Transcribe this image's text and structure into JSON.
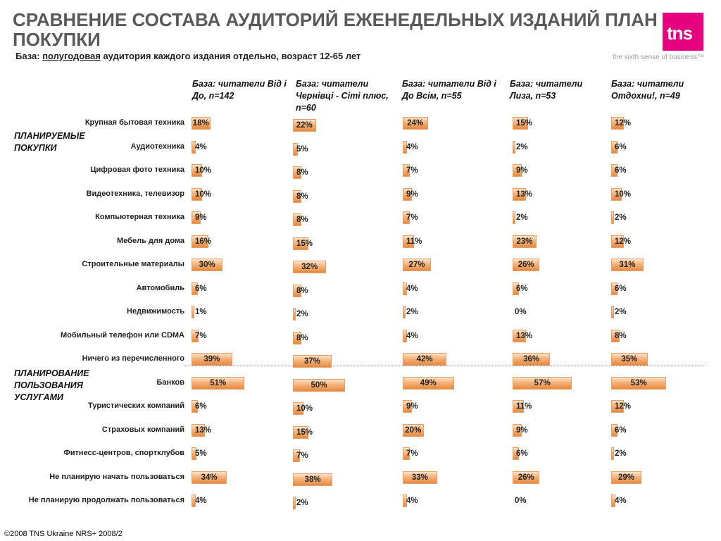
{
  "header": {
    "title_line1": "СРАВНЕНИЕ СОСТАВА АУДИТОРИЙ ЕЖЕНЕДЕЛЬНЫХ ИЗДАНИЙ ПЛАН",
    "title_line2": "ПОКУПКИ",
    "subtitle_prefix": "База: ",
    "subtitle_underlined": "полугодовая",
    "subtitle_suffix": " аудитория каждого издания отдельно, возраст 12-65 лет",
    "logo_text": "tns",
    "tagline": "the sixth sense of business™"
  },
  "footer": "©2008 TNS Ukraine  NRS+ 2008/2",
  "colors": {
    "bar": "#f5b27a",
    "brand": "#e6007e"
  },
  "chart_data": {
    "type": "bar",
    "orientation": "horizontal",
    "groups": [
      "ПЛАНИРУЕМЫЕ ПОКУПКИ",
      "ПЛАНИРОВАНИЕ ПОЛЬЗОВАНИЯ УСЛУГАМИ"
    ],
    "categories": [
      "Крупная бытовая техника",
      "Аудиотехника",
      "Цифровая фото техника",
      "Видеотехника, телевизор",
      "Компьютерная техника",
      "Мебель для дома",
      "Строительные материалы",
      "Автомобиль",
      "Недвижимость",
      "Мобильный телефон или CDMA",
      "Ничего из перечисленного",
      "Банков",
      "Туристических компаний",
      "Страховых компаний",
      "Фитнесс-центров, спортклубов",
      "Не планирую начать пользоваться",
      "Не планирую продолжать пользоваться"
    ],
    "group_of_category": [
      0,
      0,
      0,
      0,
      0,
      0,
      0,
      0,
      0,
      0,
      0,
      1,
      1,
      1,
      1,
      1,
      1
    ],
    "series": [
      {
        "name": "База: читатели Від і До, n=142",
        "values": [
          18,
          4,
          10,
          10,
          9,
          16,
          30,
          6,
          1,
          7,
          39,
          51,
          6,
          13,
          5,
          34,
          4
        ]
      },
      {
        "name": "База: читатели Чернівці - Сіті плюс, n=60",
        "values": [
          22,
          5,
          8,
          8,
          8,
          15,
          32,
          8,
          2,
          8,
          37,
          50,
          10,
          15,
          7,
          38,
          2
        ]
      },
      {
        "name": "База: читатели Від і До Всім, n=55",
        "values": [
          24,
          4,
          7,
          9,
          7,
          11,
          27,
          4,
          2,
          4,
          42,
          49,
          9,
          20,
          7,
          33,
          4
        ]
      },
      {
        "name": "База: читатели Лиза, n=53",
        "values": [
          15,
          2,
          9,
          13,
          2,
          23,
          26,
          6,
          0,
          13,
          36,
          57,
          11,
          9,
          6,
          26,
          0
        ]
      },
      {
        "name": "База: читатели Отдохни!, n=49",
        "values": [
          12,
          6,
          6,
          10,
          2,
          12,
          31,
          6,
          2,
          8,
          35,
          53,
          12,
          6,
          2,
          29,
          4
        ]
      }
    ],
    "value_suffix": "%"
  }
}
